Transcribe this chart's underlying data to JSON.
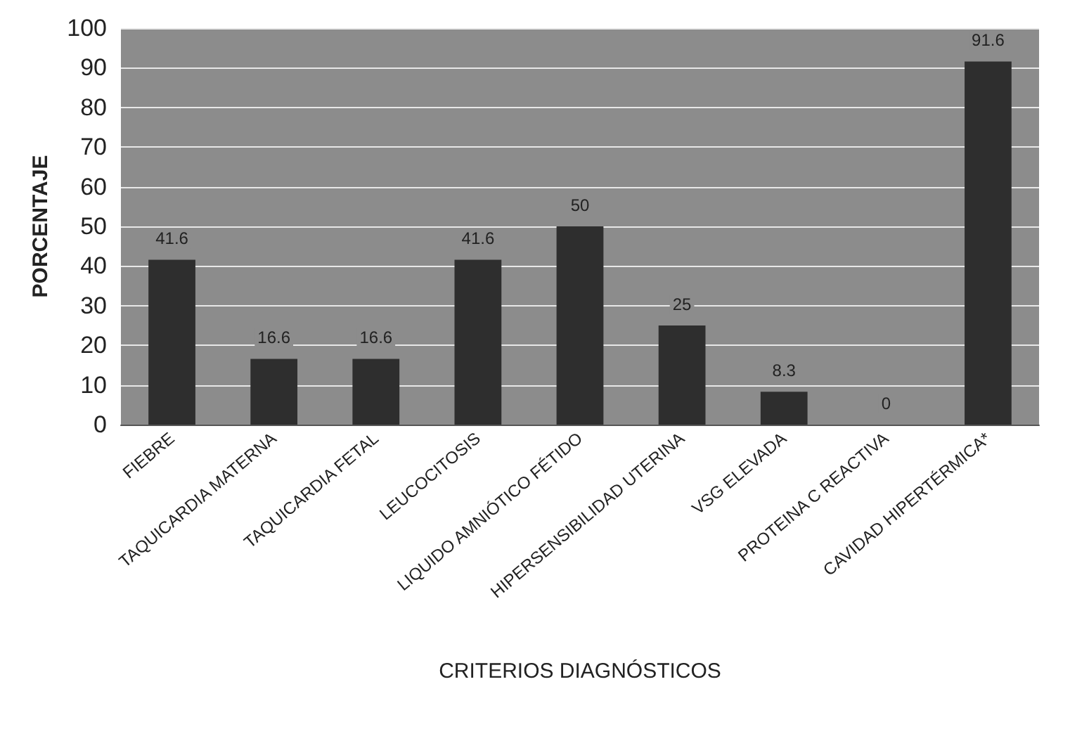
{
  "chart_data": {
    "type": "bar",
    "xlabel": "CRITERIOS DIAGNÓSTICOS",
    "ylabel": "PORCENTAJE",
    "categories": [
      "FIEBRE",
      "TAQUICARDIA MATERNA",
      "TAQUICARDIA FETAL",
      "LEUCOCITOSIS",
      "LIQUIDO AMNIÓTICO FÉTIDO",
      "HIPERSENSIBILIDAD UTERINA",
      "VSG ELEVADA",
      "PROTEINA C REACTIVA",
      "CAVIDAD HIPERTÉRMICA*"
    ],
    "values": [
      41.6,
      16.6,
      16.6,
      41.6,
      50,
      25,
      8.3,
      0,
      91.6
    ],
    "color": "#2e2e2e",
    "ylim": [
      0,
      100
    ],
    "yticks": [
      0,
      10,
      20,
      30,
      40,
      50,
      60,
      70,
      80,
      90,
      100
    ],
    "grid": "y",
    "data_labels": true
  }
}
